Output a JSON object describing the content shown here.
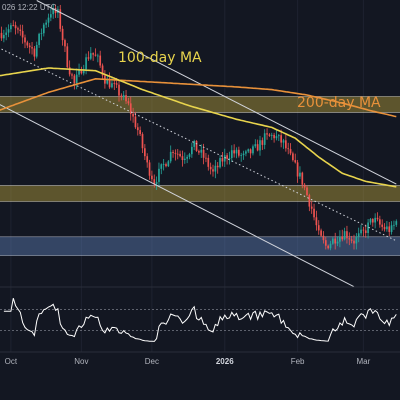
{
  "header": {
    "timestamp": "026 12:22 UTC"
  },
  "chart_data": {
    "type": "candlestick",
    "x_ticks": [
      {
        "label": "Oct",
        "bar": 4
      },
      {
        "label": "Nov",
        "bar": 34
      },
      {
        "label": "Dec",
        "bar": 64
      },
      {
        "label": "2026",
        "bar": 95,
        "year": true
      },
      {
        "label": "Feb",
        "bar": 126
      },
      {
        "label": "Mar",
        "bar": 154
      }
    ],
    "price_range": [
      0,
      100
    ],
    "indicator_range": [
      0,
      100
    ],
    "annotations": [
      {
        "text": "100-day MA",
        "series": "ma100",
        "color": "#e8d44d"
      },
      {
        "text": "200-day MA",
        "series": "ma200",
        "color": "#e8913a"
      }
    ],
    "zones": [
      {
        "from": 63.5,
        "to": 69.5,
        "color": "#b9a13b",
        "opacity": 0.45
      },
      {
        "from": 30.5,
        "to": 36.5,
        "color": "#b9a13b",
        "opacity": 0.45
      },
      {
        "from": 10.5,
        "to": 17.5,
        "color": "#5d7fb5",
        "opacity": 0.45
      }
    ],
    "ma100": {
      "color": "#e8d44d",
      "points": [
        [
          -2,
          77
        ],
        [
          20,
          80
        ],
        [
          40,
          79
        ],
        [
          60,
          72
        ],
        [
          80,
          66
        ],
        [
          100,
          61
        ],
        [
          115,
          58
        ],
        [
          125,
          54
        ],
        [
          135,
          47
        ],
        [
          145,
          41
        ],
        [
          155,
          38
        ],
        [
          168,
          36
        ]
      ]
    },
    "ma200": {
      "color": "#e8913a",
      "points": [
        [
          -2,
          64
        ],
        [
          20,
          71
        ],
        [
          40,
          76
        ],
        [
          60,
          75
        ],
        [
          80,
          74
        ],
        [
          100,
          73
        ],
        [
          115,
          72
        ],
        [
          130,
          70
        ],
        [
          145,
          67
        ],
        [
          158,
          64
        ],
        [
          168,
          62
        ]
      ]
    },
    "channel": {
      "color": "#d1d4dc",
      "upper": [
        [
          15,
          105
        ],
        [
          168,
          37
        ]
      ],
      "lower": [
        [
          -2,
          67
        ],
        [
          150,
          -1
        ]
      ],
      "mid": [
        [
          0,
          87
        ],
        [
          168,
          16
        ]
      ]
    },
    "candles": {
      "start": 93,
      "drift": -0.35,
      "up_color": "#26a69a",
      "down_color": "#ef5350"
    },
    "rsi": {
      "color": "#ffffff",
      "levels": [
        70,
        30
      ]
    }
  }
}
